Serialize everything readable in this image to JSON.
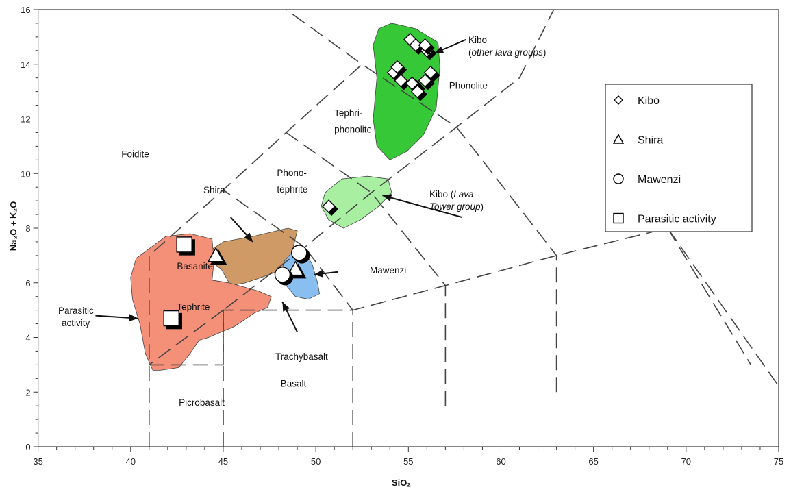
{
  "chart_data": {
    "type": "scatter",
    "xlabel": "SiO₂",
    "ylabel": "Na₂O + K₂O",
    "xlim": [
      35,
      75
    ],
    "ylim": [
      0,
      16
    ],
    "xticks": [
      "35",
      "40",
      "45",
      "50",
      "55",
      "60",
      "65",
      "70",
      "75"
    ],
    "yticks": [
      "0",
      "2",
      "4",
      "6",
      "8",
      "10",
      "12",
      "14",
      "16"
    ],
    "grid": false,
    "legend_placement": "right",
    "legend": [
      {
        "symbol": "diamond",
        "label": "Kibo"
      },
      {
        "symbol": "triangle",
        "label": "Shira"
      },
      {
        "symbol": "circle",
        "label": "Mawenzi"
      },
      {
        "symbol": "square",
        "label": "Parasitic activity"
      }
    ],
    "field_labels": [
      {
        "text": "Foidite",
        "x": 39.5,
        "y": 10.6
      },
      {
        "text": "Basanite",
        "x": 42.5,
        "y": 6.5
      },
      {
        "text": "Tephrite",
        "x": 42.5,
        "y": 5.0
      },
      {
        "text": "Picrobasalt",
        "x": 42.6,
        "y": 1.5
      },
      {
        "text": "Basalt",
        "x": 48.1,
        "y": 2.2
      },
      {
        "text": "Phono-",
        "x": 47.9,
        "y": 9.9
      },
      {
        "text": "tephrite",
        "x": 47.9,
        "y": 9.3
      },
      {
        "text": "Tephri-",
        "x": 51.0,
        "y": 12.1
      },
      {
        "text": "phonolite",
        "x": 51.0,
        "y": 11.5
      },
      {
        "text": "Phonolite",
        "x": 57.2,
        "y": 13.1
      }
    ],
    "annotations": [
      {
        "lines": [
          "Kibo",
          "(other lava groups)"
        ],
        "italic_part": "other lava groups"
      },
      {
        "lines": [
          "Kibo (Lava",
          "Tower group)"
        ],
        "italic_part": "Lava Tower group"
      },
      {
        "lines": [
          "Shira"
        ]
      },
      {
        "lines": [
          "Mawenzi"
        ]
      },
      {
        "lines": [
          "Trachybasalt"
        ]
      },
      {
        "lines": [
          "Parasitic",
          "activity"
        ]
      }
    ],
    "fields": {
      "boundaries": [
        [
          [
            41,
            0
          ],
          [
            41,
            7
          ],
          [
            45,
            9.4
          ],
          [
            48.4,
            11.5
          ],
          [
            52.5,
            14
          ],
          [
            48.4,
            16
          ]
        ],
        [
          [
            41,
            3
          ],
          [
            45,
            3
          ],
          [
            45,
            5
          ],
          [
            49.4,
            7.3
          ],
          [
            53,
            9.3
          ],
          [
            57.6,
            11.7
          ],
          [
            61,
            13.5
          ],
          [
            63,
            16.2
          ]
        ],
        [
          [
            45,
            0
          ],
          [
            45,
            5
          ],
          [
            52,
            5
          ],
          [
            57,
            5.9
          ],
          [
            63,
            7
          ],
          [
            69,
            8
          ],
          [
            77.3,
            0
          ]
        ],
        [
          [
            52,
            0
          ],
          [
            52,
            5
          ],
          [
            49.4,
            7.3
          ],
          [
            45,
            9.4
          ]
        ],
        [
          [
            57,
            1.5
          ],
          [
            57,
            5.9
          ],
          [
            53,
            9.3
          ],
          [
            48.4,
            11.5
          ]
        ],
        [
          [
            63,
            2
          ],
          [
            63,
            7
          ],
          [
            57.6,
            11.7
          ],
          [
            52.5,
            14
          ]
        ],
        [
          [
            45,
            5
          ],
          [
            41,
            3
          ]
        ],
        [
          [
            69,
            8
          ],
          [
            73.5,
            3
          ]
        ]
      ]
    },
    "series": [
      {
        "name": "Kibo",
        "marker": "diamond",
        "values": [
          {
            "x": 55.1,
            "y": 14.9
          },
          {
            "x": 55.4,
            "y": 14.7
          },
          {
            "x": 56.0,
            "y": 14.5
          },
          {
            "x": 55.9,
            "y": 14.7
          },
          {
            "x": 54.2,
            "y": 13.7
          },
          {
            "x": 54.4,
            "y": 13.9
          },
          {
            "x": 54.6,
            "y": 13.4
          },
          {
            "x": 55.4,
            "y": 13.2
          },
          {
            "x": 55.2,
            "y": 13.3
          },
          {
            "x": 55.5,
            "y": 13.0
          },
          {
            "x": 55.9,
            "y": 13.4
          },
          {
            "x": 56.2,
            "y": 13.7
          },
          {
            "x": 50.7,
            "y": 8.8
          }
        ]
      },
      {
        "name": "Shira",
        "marker": "triangle",
        "values": [
          {
            "x": 44.6,
            "y": 7.0
          },
          {
            "x": 48.9,
            "y": 6.5
          }
        ]
      },
      {
        "name": "Mawenzi",
        "marker": "circle",
        "values": [
          {
            "x": 49.1,
            "y": 7.1
          },
          {
            "x": 48.2,
            "y": 6.3
          }
        ]
      },
      {
        "name": "Parasitic activity",
        "marker": "square",
        "values": [
          {
            "x": 42.9,
            "y": 7.4
          },
          {
            "x": 42.2,
            "y": 4.7
          }
        ]
      }
    ],
    "regions": [
      {
        "name": "Kibo (other lava groups)",
        "color": "#37c837",
        "polygon": [
          [
            53.4,
            15.3
          ],
          [
            54.1,
            15.5
          ],
          [
            55.4,
            15.3
          ],
          [
            56.6,
            14.8
          ],
          [
            56.7,
            13.9
          ],
          [
            56.5,
            12.4
          ],
          [
            55.8,
            11.4
          ],
          [
            54.9,
            10.8
          ],
          [
            54.0,
            10.5
          ],
          [
            53.3,
            11.0
          ],
          [
            53.1,
            12.0
          ],
          [
            53.3,
            13.5
          ],
          [
            53.1,
            14.7
          ]
        ]
      },
      {
        "name": "Kibo (Lava Tower group)",
        "color": "#a9efa2",
        "polygon": [
          [
            50.5,
            9.3
          ],
          [
            51.4,
            9.8
          ],
          [
            52.8,
            9.9
          ],
          [
            53.9,
            9.8
          ],
          [
            54.1,
            9.3
          ],
          [
            53.4,
            8.8
          ],
          [
            52.4,
            8.3
          ],
          [
            51.5,
            8.0
          ],
          [
            50.7,
            8.3
          ],
          [
            50.3,
            8.8
          ]
        ]
      },
      {
        "name": "Shira",
        "color": "#d09a67",
        "polygon": [
          [
            44.1,
            7.1
          ],
          [
            45.0,
            7.5
          ],
          [
            46.6,
            7.7
          ],
          [
            48.5,
            8.0
          ],
          [
            49.0,
            7.9
          ],
          [
            48.7,
            7.1
          ],
          [
            48.5,
            6.6
          ],
          [
            47.5,
            6.3
          ],
          [
            46.2,
            6.0
          ],
          [
            45.4,
            5.9
          ],
          [
            44.9,
            6.5
          ],
          [
            44.3,
            6.8
          ]
        ]
      },
      {
        "name": "Mawenzi",
        "color": "#89bff0",
        "polygon": [
          [
            48.7,
            7.1
          ],
          [
            49.3,
            7.2
          ],
          [
            49.8,
            6.7
          ],
          [
            50.1,
            6.0
          ],
          [
            50.2,
            5.6
          ],
          [
            49.6,
            5.4
          ],
          [
            48.9,
            5.5
          ],
          [
            48.4,
            5.9
          ],
          [
            48.1,
            6.3
          ],
          [
            48.3,
            6.8
          ]
        ]
      },
      {
        "name": "Parasitic activity",
        "color": "#f48f78",
        "polygon": [
          [
            40.3,
            6.9
          ],
          [
            40.9,
            7.2
          ],
          [
            41.9,
            7.7
          ],
          [
            43.2,
            7.8
          ],
          [
            44.4,
            7.6
          ],
          [
            44.5,
            6.8
          ],
          [
            44.4,
            6.1
          ],
          [
            45.3,
            6.0
          ],
          [
            46.9,
            5.7
          ],
          [
            47.6,
            5.5
          ],
          [
            47.4,
            5.1
          ],
          [
            46.7,
            4.9
          ],
          [
            45.6,
            4.4
          ],
          [
            44.2,
            4.0
          ],
          [
            43.7,
            3.9
          ],
          [
            43.2,
            3.4
          ],
          [
            42.6,
            2.9
          ],
          [
            41.6,
            2.8
          ],
          [
            41.2,
            2.8
          ],
          [
            40.8,
            3.4
          ],
          [
            40.5,
            4.5
          ],
          [
            40.1,
            5.4
          ],
          [
            40.0,
            6.2
          ]
        ]
      }
    ],
    "arrows": [
      {
        "from": [
          58.1,
          14.9
        ],
        "to": [
          56.4,
          14.4
        ]
      },
      {
        "from": [
          57.9,
          8.4
        ],
        "to": [
          53.6,
          9.2
        ]
      },
      {
        "from": [
          45.4,
          8.4
        ],
        "to": [
          46.6,
          7.5
        ]
      },
      {
        "from": [
          51.2,
          6.4
        ],
        "to": [
          49.9,
          6.3
        ]
      },
      {
        "from": [
          49.0,
          4.2
        ],
        "to": [
          48.2,
          5.3
        ]
      },
      {
        "from": [
          38.1,
          4.8
        ],
        "to": [
          40.4,
          4.7
        ]
      }
    ]
  }
}
